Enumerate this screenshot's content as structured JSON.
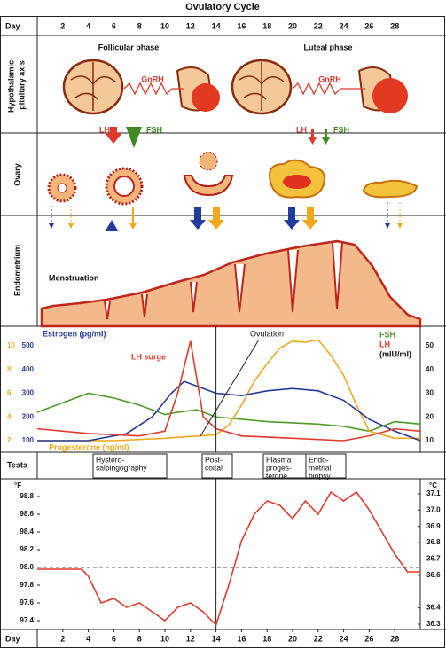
{
  "title": "Ovulatory Cycle",
  "day_label": "Day",
  "days": [
    2,
    4,
    6,
    8,
    10,
    12,
    14,
    16,
    18,
    20,
    22,
    24,
    26,
    28
  ],
  "row_labels": {
    "axis": [
      "Hypothalamic-",
      "pituitary axis"
    ],
    "ovary": "Ovary",
    "endometrium": "Endometrium"
  },
  "phases": [
    "Follicular phase",
    "Luteal phase"
  ],
  "gnrh": [
    "GnRH",
    "GnRH"
  ],
  "gonadotropins": [
    {
      "lh": "LH",
      "fsh": "FSH"
    },
    {
      "lh": "LH",
      "fsh": "FSH"
    }
  ],
  "menstruation": "Menstruation",
  "hormone_chart": {
    "type": "line",
    "xlim": [
      0,
      30
    ],
    "estrogen": {
      "label": "Estrogen (pg/ml)",
      "color": "#233b9c",
      "ylim": [
        100,
        500
      ],
      "yticks": [
        100,
        200,
        300,
        400,
        500
      ],
      "x": [
        0,
        4,
        7,
        9,
        10.5,
        11.5,
        13,
        14,
        16,
        18,
        20,
        22,
        24,
        26,
        28,
        30
      ],
      "values": [
        100,
        100,
        130,
        200,
        300,
        350,
        320,
        300,
        290,
        310,
        320,
        310,
        270,
        190,
        140,
        100
      ]
    },
    "progesterone": {
      "label": "Progesterone (ng/ml)",
      "color": "#f0a81c",
      "ylim": [
        2,
        10
      ],
      "yticks": [
        2,
        4,
        6,
        8,
        10
      ],
      "x": [
        0,
        6,
        10,
        14,
        15,
        16,
        17,
        18,
        19,
        20,
        21,
        22,
        23,
        24,
        25,
        26,
        28,
        30
      ],
      "values": [
        2,
        2,
        2.2,
        2.5,
        3.3,
        5,
        7,
        8.5,
        9.8,
        10.4,
        10.3,
        10.5,
        9.2,
        7.5,
        5,
        2.8,
        2.2,
        2.2
      ]
    },
    "fsh": {
      "label": "FSH",
      "color": "#4e9a2a",
      "x": [
        0,
        2,
        4,
        6,
        8,
        10,
        11,
        12.5,
        14,
        18,
        22,
        24,
        26,
        28,
        30
      ],
      "values": [
        22,
        26,
        30,
        28,
        25,
        21,
        22,
        23,
        20,
        18,
        17,
        16,
        14,
        18,
        17
      ]
    },
    "lh": {
      "label": "LH",
      "color": "#e0392b",
      "x": [
        0,
        4,
        8,
        10,
        11,
        12,
        13,
        14,
        16,
        20,
        24,
        26,
        28,
        30
      ],
      "values": [
        15,
        13,
        12,
        14,
        30,
        52,
        20,
        15,
        12,
        11,
        10,
        12,
        15,
        14
      ]
    },
    "gonadotropin_axis": {
      "unit": "(mIU/ml)",
      "ylim": [
        10,
        50
      ],
      "yticks": [
        10,
        20,
        30,
        40,
        50
      ]
    },
    "lh_surge": "LH surge",
    "ovulation": "Ovulation",
    "ovulation_day": 14
  },
  "tests": {
    "label": "Tests",
    "items": [
      [
        "Hystero-",
        "salpingography"
      ],
      [
        "Post-",
        "coital"
      ],
      [
        "Plasma",
        "proges-",
        "terone"
      ],
      [
        "Endo-",
        "metrial",
        "biopsy"
      ]
    ]
  },
  "temperature": {
    "type": "line",
    "color": "#e0392b",
    "xlim": [
      0,
      30
    ],
    "y_unit": "°F",
    "ylim": [
      97.4,
      98.8
    ],
    "yticks": [
      97.4,
      97.6,
      97.8,
      {
        "value": 98,
        "label": "98.0"
      },
      98.2,
      98.4,
      98.6,
      98.8
    ],
    "y2_unit": "°C",
    "y2lim": [
      36.3,
      37.1
    ],
    "y2ticks": [
      36.3,
      36.4,
      36.6,
      36.7,
      36.8,
      36.9,
      {
        "value": 37,
        "label": "37.0"
      },
      37.1
    ],
    "baseline": 98,
    "x": [
      0,
      3.5,
      4,
      5,
      6,
      7,
      8,
      9,
      10,
      11,
      12,
      13,
      14,
      15,
      16,
      17,
      18,
      19,
      20,
      21,
      22,
      23,
      24,
      25,
      26,
      27,
      28,
      29,
      30
    ],
    "values": [
      97.98,
      97.98,
      97.9,
      97.6,
      97.65,
      97.55,
      97.6,
      97.5,
      97.4,
      97.55,
      97.6,
      97.5,
      97.35,
      97.8,
      98.3,
      98.6,
      98.75,
      98.7,
      98.55,
      98.75,
      98.6,
      98.85,
      98.75,
      98.85,
      98.65,
      98.4,
      98.15,
      97.95,
      97.95
    ]
  }
}
